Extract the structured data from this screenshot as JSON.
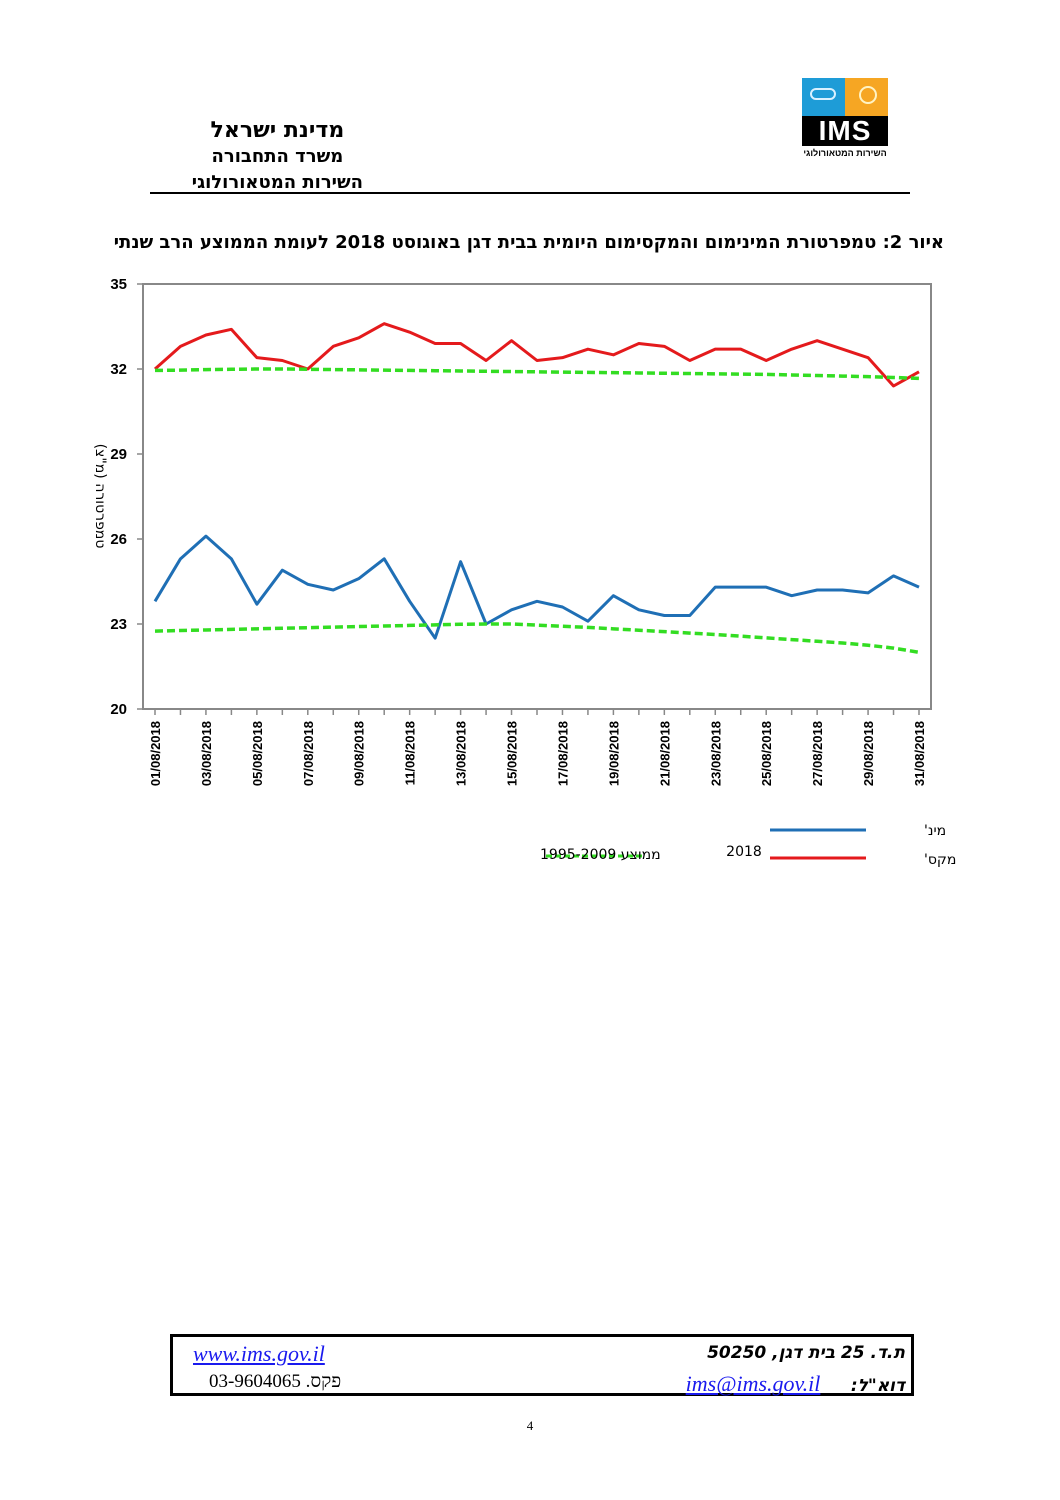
{
  "header": {
    "org_line1": "מדינת ישראל",
    "org_line2": "משרד התחבורה",
    "org_line3": "השירות המטאורולוגי",
    "logo_text": "IMS",
    "logo_subtitle": "השירות המטאורולוגי"
  },
  "figure_title": "איור 2: טמפרטורת המינימום והמקסימום היומית בבית דגן באוגוסט 2018 לעומת הממוצע הרב שנתי",
  "chart_data": {
    "type": "line",
    "title": "איור 2: טמפרטורת המינימום והמקסימום היומית בבית דגן באוגוסט 2018 לעומת הממוצע הרב שנתי",
    "ylabel": "טמפרטורה (מ\"צ)",
    "xlabel": "",
    "ylim": [
      20,
      35
    ],
    "yticks": [
      20,
      23,
      26,
      29,
      32,
      35
    ],
    "x": [
      "01/08/2018",
      "02/08/2018",
      "03/08/2018",
      "04/08/2018",
      "05/08/2018",
      "06/08/2018",
      "07/08/2018",
      "08/08/2018",
      "09/08/2018",
      "10/08/2018",
      "11/08/2018",
      "12/08/2018",
      "13/08/2018",
      "14/08/2018",
      "15/08/2018",
      "16/08/2018",
      "17/08/2018",
      "18/08/2018",
      "19/08/2018",
      "20/08/2018",
      "21/08/2018",
      "22/08/2018",
      "23/08/2018",
      "24/08/2018",
      "25/08/2018",
      "26/08/2018",
      "27/08/2018",
      "28/08/2018",
      "29/08/2018",
      "30/08/2018",
      "31/08/2018"
    ],
    "xtick_labels": [
      "01/08/2018",
      "03/08/2018",
      "05/08/2018",
      "07/08/2018",
      "09/08/2018",
      "11/08/2018",
      "13/08/2018",
      "15/08/2018",
      "17/08/2018",
      "19/08/2018",
      "21/08/2018",
      "23/08/2018",
      "25/08/2018",
      "27/08/2018",
      "29/08/2018",
      "31/08/2018"
    ],
    "series": [
      {
        "name": "מקס' 2018",
        "color": "#e41a1c",
        "style": "solid",
        "values": [
          32.0,
          32.8,
          33.2,
          33.4,
          32.4,
          32.3,
          32.0,
          32.8,
          33.1,
          33.6,
          33.3,
          32.9,
          32.9,
          32.3,
          33.0,
          32.3,
          32.4,
          32.7,
          32.5,
          32.9,
          32.8,
          32.3,
          32.7,
          32.7,
          32.3,
          32.7,
          33.0,
          32.7,
          32.4,
          31.4,
          31.9
        ]
      },
      {
        "name": "מינ' 2018",
        "color": "#1f6fb5",
        "style": "solid",
        "values": [
          23.8,
          25.3,
          26.1,
          25.3,
          23.7,
          24.9,
          24.4,
          24.2,
          24.6,
          25.3,
          23.8,
          22.5,
          25.2,
          23.0,
          23.5,
          23.8,
          23.6,
          23.1,
          24.0,
          23.5,
          23.3,
          23.3,
          24.3,
          24.3,
          24.3,
          24.0,
          24.2,
          24.2,
          24.1,
          24.7,
          24.3
        ]
      },
      {
        "name": "ממוצע 1995-2009 מקס'",
        "color": "#33dd22",
        "style": "dashed",
        "values": [
          31.95,
          31.96,
          31.98,
          31.99,
          32.0,
          32.0,
          31.99,
          31.98,
          31.97,
          31.96,
          31.95,
          31.94,
          31.93,
          31.92,
          31.91,
          31.9,
          31.89,
          31.88,
          31.87,
          31.86,
          31.85,
          31.84,
          31.83,
          31.82,
          31.81,
          31.79,
          31.77,
          31.75,
          31.73,
          31.7,
          31.67
        ]
      },
      {
        "name": "ממוצע 1995-2009 מינ'",
        "color": "#33dd22",
        "style": "dashed",
        "values": [
          22.75,
          22.77,
          22.79,
          22.81,
          22.83,
          22.85,
          22.87,
          22.89,
          22.91,
          22.93,
          22.95,
          22.97,
          22.99,
          23.0,
          23.0,
          22.96,
          22.92,
          22.88,
          22.83,
          22.78,
          22.73,
          22.68,
          22.63,
          22.57,
          22.51,
          22.45,
          22.39,
          22.33,
          22.25,
          22.15,
          22.0
        ]
      }
    ],
    "legend": {
      "min_label": "מינ'",
      "max_label": "מקס'",
      "year_label": "2018",
      "avg_label": "ממוצע 1995-2009"
    }
  },
  "footer": {
    "website": "www.ims.gov.il",
    "fax": "פקס. 03-9604065",
    "address": "ת.ד. 25 בית דגן, 50250",
    "email_label": "דוא\"ל:",
    "email": "ims@ims.gov.il"
  },
  "page_number": "4"
}
